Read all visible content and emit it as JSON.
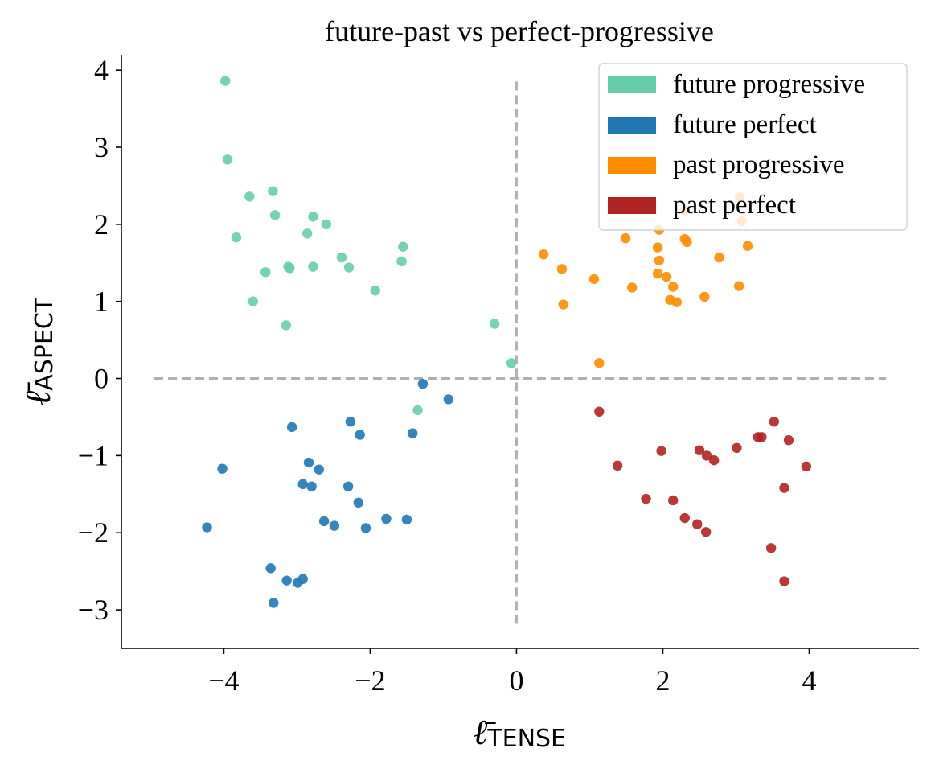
{
  "chart_data": {
    "type": "scatter",
    "title": "future-past vs perfect-progressive",
    "xlabel_symbol": "ℓ̄",
    "xlabel_subscript": "TENSE",
    "ylabel_symbol": "ℓ̄",
    "ylabel_subscript": "ASPECT",
    "xlim": [
      -5.4,
      5.5
    ],
    "ylim": [
      -3.5,
      4.2
    ],
    "xticks": [
      -4,
      -2,
      0,
      2,
      4
    ],
    "yticks": [
      -3,
      -2,
      -1,
      0,
      1,
      2,
      3,
      4
    ],
    "xtick_labels": [
      "−4",
      "−2",
      "0",
      "2",
      "4"
    ],
    "ytick_labels": [
      "−3",
      "−2",
      "−1",
      "0",
      "1",
      "2",
      "3",
      "4"
    ],
    "grid": false,
    "legend_position": "top-right",
    "reference_lines": [
      {
        "orientation": "horizontal",
        "y": 0,
        "x_range": [
          -4.95,
          5.05
        ],
        "style": "dashed",
        "color": "#b0b0b0"
      },
      {
        "orientation": "vertical",
        "x": 0,
        "y_range": [
          -3.18,
          3.87
        ],
        "style": "dashed",
        "color": "#b0b0b0"
      }
    ],
    "series": [
      {
        "name": "future progressive",
        "color": "#66cdaa",
        "points": [
          [
            -3.98,
            3.86
          ],
          [
            -3.95,
            2.84
          ],
          [
            -3.65,
            2.36
          ],
          [
            -3.33,
            2.43
          ],
          [
            -3.3,
            2.12
          ],
          [
            -2.78,
            2.1
          ],
          [
            -2.6,
            2.0
          ],
          [
            -2.86,
            1.88
          ],
          [
            -3.83,
            1.83
          ],
          [
            -1.55,
            1.71
          ],
          [
            -2.39,
            1.57
          ],
          [
            -1.57,
            1.52
          ],
          [
            -3.12,
            1.45
          ],
          [
            -2.78,
            1.45
          ],
          [
            -2.29,
            1.44
          ],
          [
            -3.1,
            1.43
          ],
          [
            -3.43,
            1.38
          ],
          [
            -1.93,
            1.14
          ],
          [
            -3.6,
            1.0
          ],
          [
            -3.15,
            0.69
          ],
          [
            -0.3,
            0.71
          ],
          [
            -0.07,
            0.2
          ],
          [
            -1.35,
            -0.41
          ]
        ]
      },
      {
        "name": "future perfect",
        "color": "#1f77b4",
        "points": [
          [
            -1.28,
            -0.07
          ],
          [
            -0.93,
            -0.27
          ],
          [
            -2.27,
            -0.56
          ],
          [
            -3.07,
            -0.63
          ],
          [
            -2.14,
            -0.73
          ],
          [
            -1.42,
            -0.71
          ],
          [
            -4.02,
            -1.17
          ],
          [
            -2.84,
            -1.09
          ],
          [
            -2.7,
            -1.18
          ],
          [
            -2.92,
            -1.37
          ],
          [
            -2.8,
            -1.4
          ],
          [
            -2.3,
            -1.4
          ],
          [
            -2.16,
            -1.61
          ],
          [
            -1.78,
            -1.82
          ],
          [
            -1.5,
            -1.83
          ],
          [
            -2.63,
            -1.85
          ],
          [
            -2.49,
            -1.91
          ],
          [
            -2.06,
            -1.94
          ],
          [
            -4.23,
            -1.93
          ],
          [
            -3.36,
            -2.46
          ],
          [
            -3.14,
            -2.62
          ],
          [
            -2.92,
            -2.6
          ],
          [
            -2.99,
            -2.65
          ],
          [
            -3.32,
            -2.91
          ]
        ]
      },
      {
        "name": "past progressive",
        "color": "#ff8c00",
        "points": [
          [
            3.05,
            2.35
          ],
          [
            3.08,
            2.04
          ],
          [
            2.3,
            2.18
          ],
          [
            1.95,
            1.93
          ],
          [
            1.49,
            1.82
          ],
          [
            2.3,
            1.81
          ],
          [
            2.33,
            1.77
          ],
          [
            1.93,
            1.7
          ],
          [
            3.16,
            1.72
          ],
          [
            0.37,
            1.61
          ],
          [
            2.77,
            1.57
          ],
          [
            1.95,
            1.53
          ],
          [
            0.62,
            1.42
          ],
          [
            1.93,
            1.36
          ],
          [
            2.05,
            1.32
          ],
          [
            1.06,
            1.29
          ],
          [
            2.14,
            1.19
          ],
          [
            3.04,
            1.2
          ],
          [
            1.58,
            1.18
          ],
          [
            2.1,
            1.02
          ],
          [
            2.19,
            0.99
          ],
          [
            2.57,
            1.06
          ],
          [
            0.64,
            0.96
          ],
          [
            1.13,
            0.2
          ]
        ]
      },
      {
        "name": "past perfect",
        "color": "#b22222",
        "points": [
          [
            1.13,
            -0.43
          ],
          [
            3.52,
            -0.56
          ],
          [
            3.3,
            -0.76
          ],
          [
            3.35,
            -0.76
          ],
          [
            3.72,
            -0.8
          ],
          [
            3.01,
            -0.9
          ],
          [
            1.98,
            -0.94
          ],
          [
            2.5,
            -0.93
          ],
          [
            2.6,
            -1.0
          ],
          [
            2.7,
            -1.06
          ],
          [
            1.38,
            -1.13
          ],
          [
            3.96,
            -1.14
          ],
          [
            3.66,
            -1.42
          ],
          [
            1.77,
            -1.56
          ],
          [
            2.14,
            -1.58
          ],
          [
            2.3,
            -1.81
          ],
          [
            2.47,
            -1.89
          ],
          [
            2.59,
            -1.99
          ],
          [
            3.48,
            -2.2
          ],
          [
            3.66,
            -2.63
          ]
        ]
      }
    ]
  }
}
